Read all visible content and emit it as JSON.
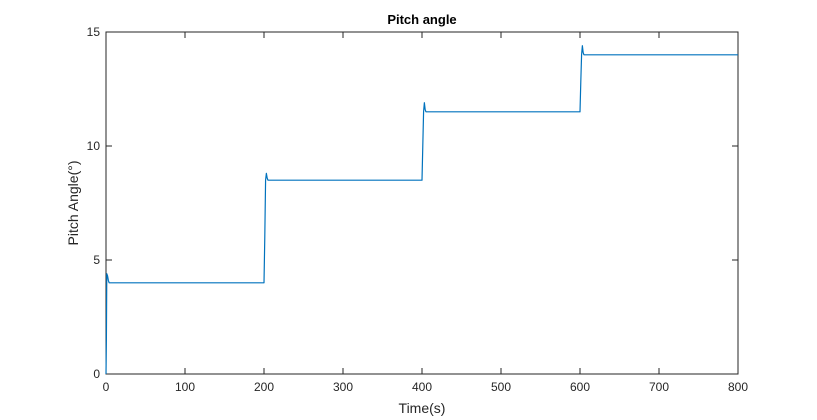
{
  "chart_data": {
    "type": "line",
    "title": "Pitch angle",
    "xlabel": "Time(s)",
    "ylabel": "Pitch Angle(°)",
    "xlim": [
      0,
      800
    ],
    "ylim": [
      0,
      15
    ],
    "xticks": [
      0,
      100,
      200,
      300,
      400,
      500,
      600,
      700,
      800
    ],
    "yticks": [
      0,
      5,
      10,
      15
    ],
    "grid": false,
    "legend": "none",
    "colors": {
      "line": "#0072BD",
      "axis": "#262626",
      "background": "#ffffff"
    },
    "series": [
      {
        "x": [
          0,
          0.5,
          1,
          2,
          3,
          4,
          6,
          10,
          100,
          200,
          201,
          202,
          203,
          204,
          205,
          206,
          208,
          210,
          300,
          400,
          401,
          402,
          403,
          404,
          405,
          406,
          408,
          410,
          500,
          600,
          601,
          602,
          603,
          604,
          605,
          606,
          608,
          610,
          700,
          800
        ],
        "y": [
          0,
          1.5,
          4.4,
          4.3,
          4.1,
          4.0,
          4.0,
          4.0,
          4.0,
          4.0,
          6.0,
          8.5,
          8.8,
          8.6,
          8.5,
          8.5,
          8.5,
          8.5,
          8.5,
          8.5,
          10.0,
          11.5,
          11.9,
          11.6,
          11.5,
          11.5,
          11.5,
          11.5,
          11.5,
          11.5,
          12.8,
          14.0,
          14.4,
          14.1,
          14.0,
          14.0,
          14.0,
          14.0,
          14.0,
          14.0
        ]
      }
    ]
  }
}
